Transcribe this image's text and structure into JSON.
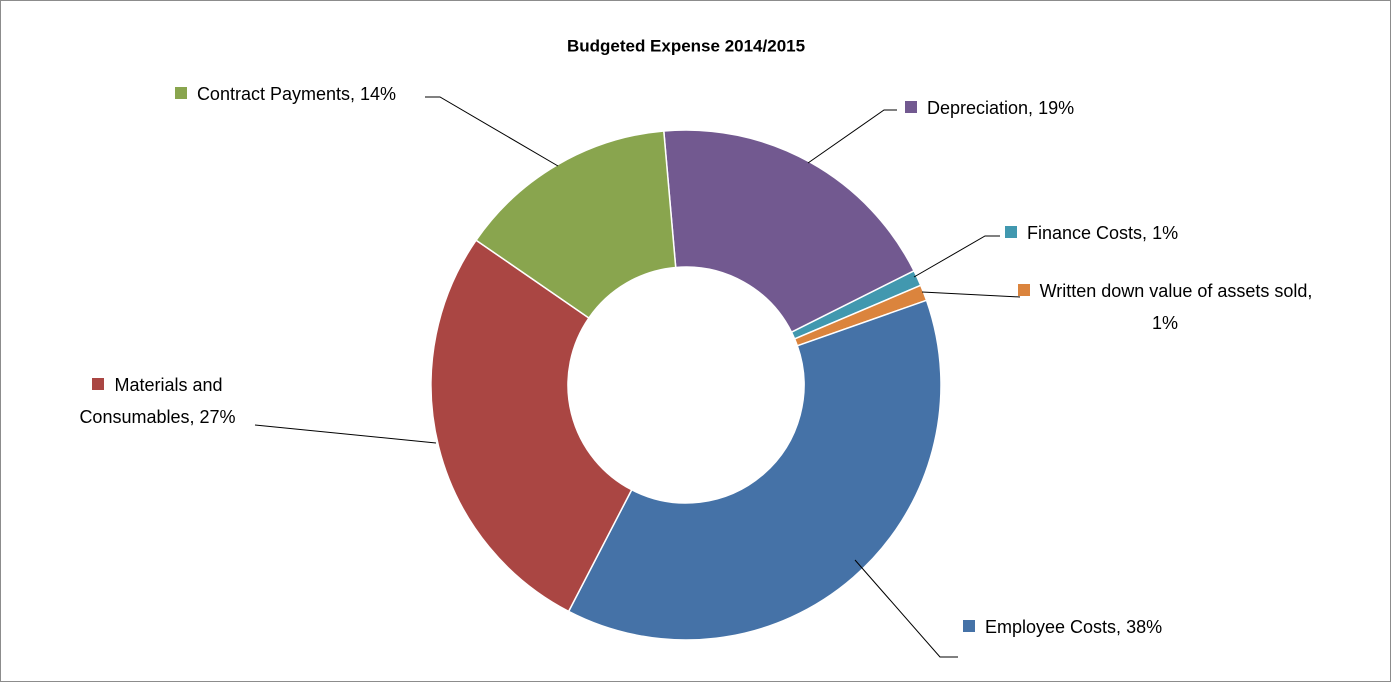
{
  "chart_data": {
    "type": "donut",
    "title": "Budgeted Expense 2014/2015",
    "categories": [
      "Depreciation,",
      "Finance Costs,",
      "Written down value of assets sold,",
      "Employee Costs,",
      "Materials and Consumables,",
      "Contract Payments,"
    ],
    "values": [
      19,
      1,
      1,
      38,
      27,
      14
    ],
    "value_labels": [
      "19%",
      "1%",
      "1%",
      "38%",
      "27%",
      "14%"
    ],
    "colors": [
      "#725990",
      "#4198af",
      "#db843d",
      "#4572a7",
      "#aa4643",
      "#89a54e"
    ]
  }
}
